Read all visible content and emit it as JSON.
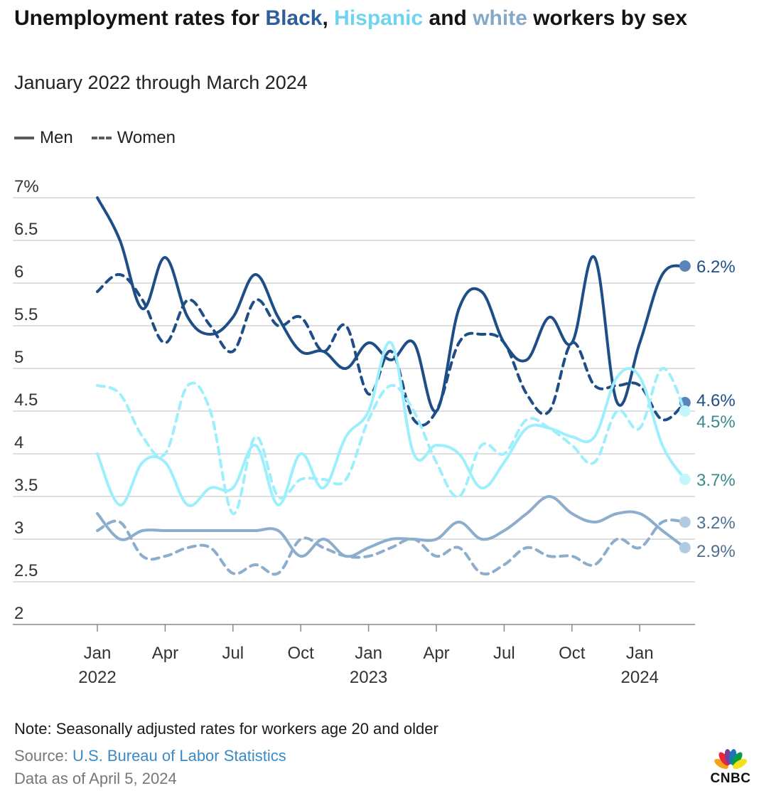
{
  "header": {
    "title_prefix": "Unemployment rates for ",
    "title_black": "Black",
    "title_comma": ", ",
    "title_hispanic": "Hispanic",
    "title_and": " and ",
    "title_white": "white",
    "title_suffix": " workers by sex",
    "subtitle": "January 2022 through March 2024"
  },
  "legend": {
    "men": "Men",
    "women": "Women"
  },
  "colors": {
    "black": "#1f4e87",
    "hispanic": "#9eeffc",
    "white": "#8cadcb",
    "grid": "#cccccc",
    "axis": "#888888"
  },
  "chart_data": {
    "type": "line",
    "title": "Unemployment rates for Black, Hispanic and white workers by sex",
    "subtitle": "January 2022 through March 2024",
    "xlabel": "",
    "ylabel": "",
    "ylim": [
      2,
      7
    ],
    "yticks": [
      "2",
      "2.5",
      "3",
      "3.5",
      "4",
      "4.5",
      "5",
      "5.5",
      "6",
      "6.5",
      "7%"
    ],
    "xticks": [
      {
        "label": "Jan",
        "year": "2022",
        "index": 0
      },
      {
        "label": "Apr",
        "year": "",
        "index": 3
      },
      {
        "label": "Jul",
        "year": "",
        "index": 6
      },
      {
        "label": "Oct",
        "year": "",
        "index": 9
      },
      {
        "label": "Jan",
        "year": "2023",
        "index": 12
      },
      {
        "label": "Apr",
        "year": "",
        "index": 15
      },
      {
        "label": "Jul",
        "year": "",
        "index": 18
      },
      {
        "label": "Oct",
        "year": "",
        "index": 21
      },
      {
        "label": "Jan",
        "year": "2024",
        "index": 24
      }
    ],
    "x": [
      "2022-01",
      "2022-02",
      "2022-03",
      "2022-04",
      "2022-05",
      "2022-06",
      "2022-07",
      "2022-08",
      "2022-09",
      "2022-10",
      "2022-11",
      "2022-12",
      "2023-01",
      "2023-02",
      "2023-03",
      "2023-04",
      "2023-05",
      "2023-06",
      "2023-07",
      "2023-08",
      "2023-09",
      "2023-10",
      "2023-11",
      "2023-12",
      "2024-01",
      "2024-02",
      "2024-03"
    ],
    "series": [
      {
        "name": "Black men",
        "group": "black",
        "style": "solid",
        "end_label": "6.2%",
        "values": [
          7.0,
          6.5,
          5.7,
          6.3,
          5.6,
          5.4,
          5.6,
          6.1,
          5.6,
          5.2,
          5.2,
          5.0,
          5.3,
          5.1,
          5.3,
          4.5,
          5.7,
          5.9,
          5.3,
          5.1,
          5.6,
          5.3,
          6.3,
          4.6,
          5.3,
          6.1,
          6.2
        ]
      },
      {
        "name": "Black women",
        "group": "black",
        "style": "dashed",
        "end_label": "4.6%",
        "values": [
          5.9,
          6.1,
          5.8,
          5.3,
          5.8,
          5.5,
          5.2,
          5.8,
          5.5,
          5.6,
          5.2,
          5.5,
          4.7,
          5.2,
          4.4,
          4.5,
          5.3,
          5.4,
          5.3,
          4.7,
          4.5,
          5.3,
          4.8,
          4.8,
          4.8,
          4.4,
          4.6
        ]
      },
      {
        "name": "Hispanic women",
        "group": "hispanic",
        "style": "dashed",
        "end_label": "4.5%",
        "values": [
          4.8,
          4.7,
          4.2,
          4.0,
          4.8,
          4.5,
          3.3,
          4.2,
          3.5,
          3.7,
          3.7,
          3.7,
          4.4,
          4.8,
          4.5,
          3.9,
          3.5,
          4.1,
          4.0,
          4.4,
          4.3,
          4.1,
          3.9,
          4.5,
          4.3,
          5.0,
          4.5
        ]
      },
      {
        "name": "Hispanic men",
        "group": "hispanic",
        "style": "solid",
        "end_label": "3.7%",
        "values": [
          4.0,
          3.4,
          3.9,
          3.9,
          3.4,
          3.6,
          3.6,
          4.1,
          3.4,
          4.0,
          3.6,
          4.2,
          4.5,
          5.3,
          4.0,
          4.1,
          4.0,
          3.6,
          3.9,
          4.3,
          4.3,
          4.2,
          4.2,
          4.9,
          4.9,
          4.1,
          3.7
        ]
      },
      {
        "name": "White women",
        "group": "white",
        "style": "dashed",
        "end_label": "3.2%",
        "values": [
          3.1,
          3.2,
          2.8,
          2.8,
          2.9,
          2.9,
          2.6,
          2.7,
          2.6,
          3.0,
          2.9,
          2.8,
          2.8,
          2.9,
          3.0,
          2.8,
          2.9,
          2.6,
          2.7,
          2.9,
          2.8,
          2.8,
          2.7,
          3.0,
          2.9,
          3.2,
          3.2
        ]
      },
      {
        "name": "White men",
        "group": "white",
        "style": "solid",
        "end_label": "2.9%",
        "values": [
          3.3,
          3.0,
          3.1,
          3.1,
          3.1,
          3.1,
          3.1,
          3.1,
          3.1,
          2.8,
          3.0,
          2.8,
          2.9,
          3.0,
          3.0,
          3.0,
          3.2,
          3.0,
          3.1,
          3.3,
          3.5,
          3.3,
          3.2,
          3.3,
          3.3,
          3.1,
          2.9
        ]
      }
    ]
  },
  "footer": {
    "note": "Note: Seasonally adjusted rates for workers age 20 and older",
    "source_label": "Source: ",
    "source_link": "U.S. Bureau of Labor Statistics",
    "as_of": "Data as of April 5, 2024",
    "logo_text": "CNBC"
  }
}
